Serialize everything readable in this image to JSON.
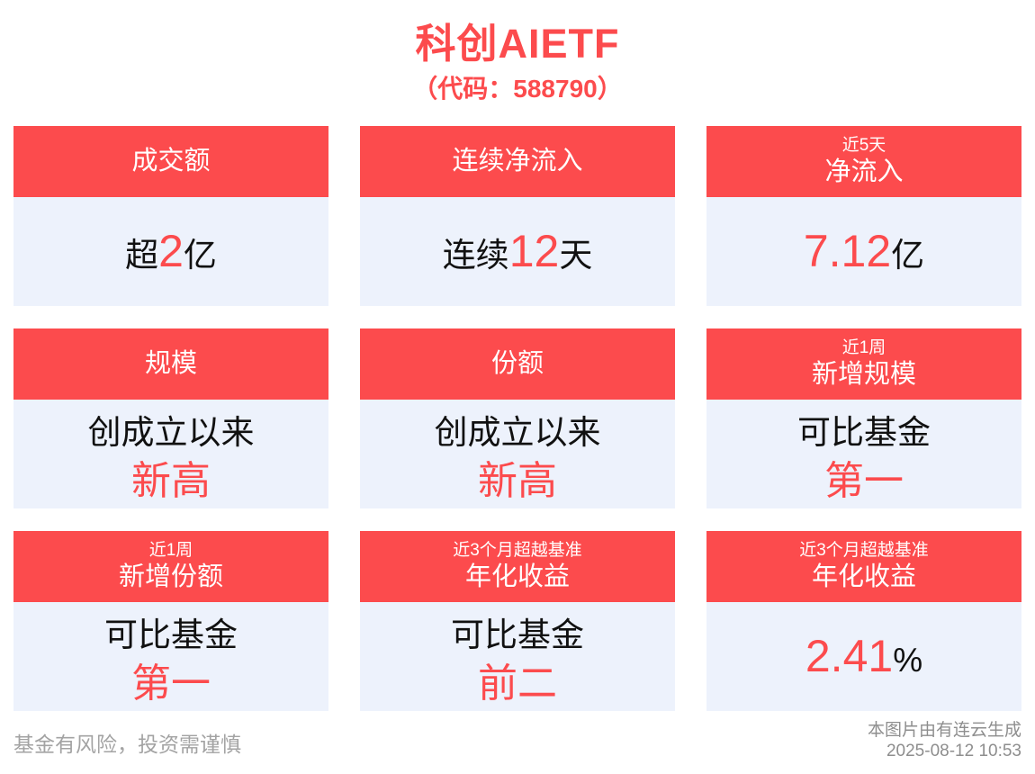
{
  "page": {
    "title": "科创AIETF",
    "subtitle": "（代码：588790）"
  },
  "colors": {
    "accent_red": "#fc4b4d",
    "card_body_bg": "#edf2fc",
    "text_black": "#111111",
    "footer_gray": "#a3a3a3"
  },
  "cards": [
    {
      "header": {
        "small": "",
        "main": "成交额"
      },
      "body": {
        "line1": {
          "pre": "超",
          "em": "2",
          "post": "亿"
        },
        "line2": {
          "em": ""
        }
      }
    },
    {
      "header": {
        "small": "",
        "main": "连续净流入"
      },
      "body": {
        "line1": {
          "pre": "连续",
          "em": "12",
          "post": "天"
        },
        "line2": {
          "em": ""
        }
      }
    },
    {
      "header": {
        "small": "近5天",
        "main": "净流入"
      },
      "body": {
        "line1": {
          "pre": "",
          "em": "7.12",
          "post": "亿"
        },
        "line2": {
          "em": ""
        }
      }
    },
    {
      "header": {
        "small": "",
        "main": "规模"
      },
      "body": {
        "line1": {
          "pre": "创成立以来",
          "em": "",
          "post": ""
        },
        "line2": {
          "em": "新高"
        }
      }
    },
    {
      "header": {
        "small": "",
        "main": "份额"
      },
      "body": {
        "line1": {
          "pre": "创成立以来",
          "em": "",
          "post": ""
        },
        "line2": {
          "em": "新高"
        }
      }
    },
    {
      "header": {
        "small": "近1周",
        "main": "新增规模"
      },
      "body": {
        "line1": {
          "pre": "可比基金",
          "em": "",
          "post": ""
        },
        "line2": {
          "em": "第一"
        }
      }
    },
    {
      "header": {
        "small": "近1周",
        "main": "新增份额"
      },
      "body": {
        "line1": {
          "pre": "可比基金",
          "em": "",
          "post": ""
        },
        "line2": {
          "em": "第一"
        }
      }
    },
    {
      "header": {
        "small": "近3个月超越基准",
        "main": "年化收益"
      },
      "body": {
        "line1": {
          "pre": "可比基金",
          "em": "",
          "post": ""
        },
        "line2": {
          "em": "前二"
        }
      }
    },
    {
      "header": {
        "small": "近3个月超越基准",
        "main": "年化收益"
      },
      "body": {
        "line1": {
          "pre": "",
          "em": "2.41",
          "post": "%"
        },
        "line2": {
          "em": ""
        }
      }
    }
  ],
  "footer": {
    "disclaimer": "基金有风险，投资需谨慎",
    "generator": "本图片由有连云生成",
    "timestamp": "2025-08-12 10:53"
  }
}
